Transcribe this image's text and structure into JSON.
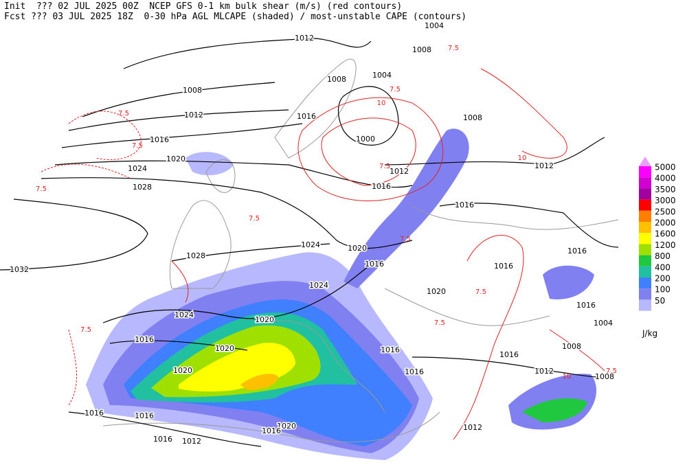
{
  "header": {
    "line1": "Init  ??? 02 JUL 2025 00Z  NCEP GFS 0-1 km bulk shear (m/s) (red contours)",
    "line2": "Fcst ??? 03 JUL 2025 18Z  0-30 hPa AGL MLCAPE (shaded) / most-unstable CAPE (contours)"
  },
  "legend": {
    "unit": "J/kg",
    "items": [
      {
        "label": "5000",
        "color": "#ff00ff"
      },
      {
        "label": "4000",
        "color": "#d000d0"
      },
      {
        "label": "3500",
        "color": "#a000a0"
      },
      {
        "label": "3000",
        "color": "#ff0000"
      },
      {
        "label": "2500",
        "color": "#ff8000"
      },
      {
        "label": "2000",
        "color": "#ffc000"
      },
      {
        "label": "1600",
        "color": "#ffff00"
      },
      {
        "label": "1200",
        "color": "#a0e000"
      },
      {
        "label": "800",
        "color": "#20c840"
      },
      {
        "label": "400",
        "color": "#20c0a0"
      },
      {
        "label": "200",
        "color": "#4080ff"
      },
      {
        "label": "100",
        "color": "#8080f0"
      },
      {
        "label": "50",
        "color": "#b8b8ff"
      }
    ]
  },
  "isobar_labels": [
    1012,
    1008,
    1012,
    1016,
    1020,
    1024,
    1028,
    1032,
    1028,
    1024,
    1020,
    1016,
    1024,
    1020,
    1024,
    1016,
    1020,
    1020,
    1016,
    1016,
    1016,
    1012,
    1020,
    1016,
    1016,
    1016,
    1020,
    1016,
    1016,
    1012,
    1012,
    1008,
    1008,
    1004,
    1016,
    1016,
    1016,
    1012,
    1008,
    1016,
    1012,
    1000,
    1004,
    1008,
    1004,
    1008,
    1016
  ],
  "shear_labels": [
    "7.5",
    "7.5",
    "7.5",
    "7.5",
    "7.5",
    "10",
    "7.5",
    "7.5",
    "10",
    "7.5",
    "7.5",
    "7.5",
    "10",
    "7.5",
    "7.5"
  ]
}
